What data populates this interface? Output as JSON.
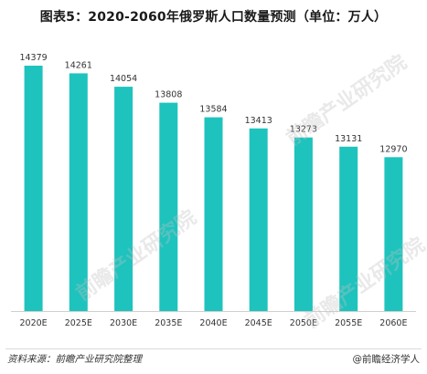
{
  "title": "图表5：2020-2060年俄罗斯人口数量预测（单位：万人）",
  "source": "资料来源：前瞻产业研究院整理",
  "brand": "@前瞻经济学人",
  "watermark": "前瞻产业研究院",
  "colors": {
    "bar": "#1ec3bd",
    "axis": "#cfcfcf",
    "text": "#333333"
  },
  "chart_data": {
    "type": "bar",
    "categories": [
      "2020E",
      "2025E",
      "2030E",
      "2035E",
      "2040E",
      "2045E",
      "2050E",
      "2055E",
      "2060E"
    ],
    "values": [
      14379,
      14261,
      14054,
      13808,
      13584,
      13413,
      13273,
      13131,
      12970
    ],
    "title": "图表5：2020-2060年俄罗斯人口数量预测（单位：万人）",
    "xlabel": "",
    "ylabel": "",
    "ylim": [
      10600,
      14379
    ],
    "grid": false,
    "legend": "none"
  }
}
